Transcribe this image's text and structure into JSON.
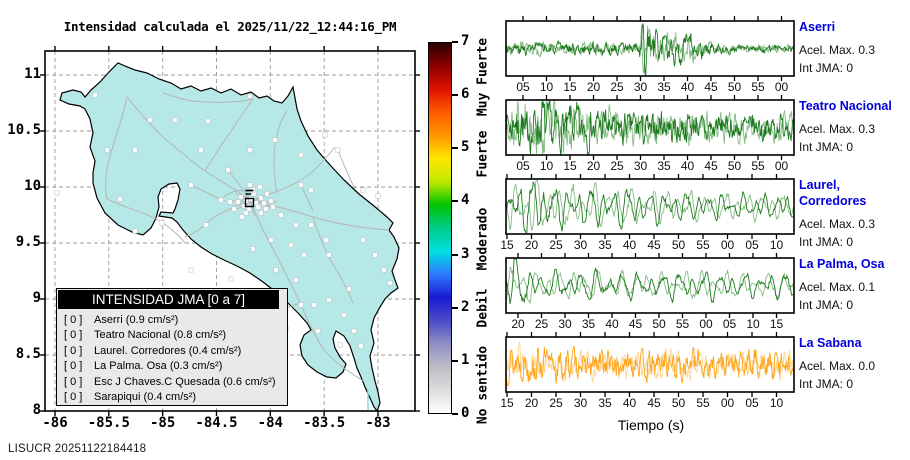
{
  "map": {
    "title": "Intensidad calculada el 2025/11/22_12:44:16_PM",
    "x_tick_labels": [
      "-86",
      "-85.5",
      "-85",
      "-84.5",
      "-84",
      "-83.5",
      "-83"
    ],
    "y_tick_labels": [
      "11",
      "10.5",
      "10",
      "9.5",
      "9",
      "8.5",
      "8"
    ],
    "land_color": "#b7e8e8",
    "legend": {
      "title": "INTENSIDAD JMA [0 a 7]",
      "items": [
        {
          "intensity": "0",
          "label": "Aserri (0.9 cm/s²)"
        },
        {
          "intensity": "0",
          "label": "Teatro Nacional (0.8 cm/s²)"
        },
        {
          "intensity": "0",
          "label": "Laurel. Corredores (0.4 cm/s²)"
        },
        {
          "intensity": "0",
          "label": "La Palma. Osa (0.3 cm/s²)"
        },
        {
          "intensity": "0",
          "label": "Esc J Chaves.C Quesada (0.6 cm/s²)"
        },
        {
          "intensity": "0",
          "label": "Sarapiqui (0.4 cm/s²)"
        }
      ]
    },
    "epicenter": {
      "symbol": "open-square"
    },
    "station_dots": [
      [
        196,
        146
      ],
      [
        201,
        150
      ],
      [
        206,
        148
      ],
      [
        211,
        152
      ],
      [
        216,
        147
      ],
      [
        209,
        143
      ],
      [
        199,
        155
      ],
      [
        204,
        158
      ],
      [
        213,
        156
      ],
      [
        219,
        152
      ],
      [
        193,
        151
      ],
      [
        208,
        139
      ],
      [
        201,
        162
      ],
      [
        216,
        162
      ],
      [
        221,
        158
      ],
      [
        226,
        150
      ],
      [
        189,
        158
      ],
      [
        197,
        166
      ],
      [
        222,
        143
      ],
      [
        228,
        156
      ],
      [
        185,
        151
      ],
      [
        205,
        134
      ],
      [
        215,
        136
      ],
      [
        12,
        142
      ],
      [
        50,
        44
      ],
      [
        105,
        69
      ],
      [
        130,
        69
      ],
      [
        163,
        70
      ],
      [
        205,
        45
      ],
      [
        293,
        99
      ],
      [
        318,
        139
      ],
      [
        333,
        145
      ],
      [
        256,
        134
      ],
      [
        266,
        139
      ],
      [
        183,
        119
      ],
      [
        146,
        134
      ],
      [
        117,
        172
      ],
      [
        90,
        180
      ],
      [
        75,
        148
      ],
      [
        208,
        198
      ],
      [
        226,
        189
      ],
      [
        246,
        194
      ],
      [
        259,
        204
      ],
      [
        284,
        204
      ],
      [
        304,
        238
      ],
      [
        284,
        249
      ],
      [
        256,
        254
      ],
      [
        241,
        278
      ],
      [
        273,
        280
      ],
      [
        295,
        294
      ],
      [
        309,
        280
      ],
      [
        186,
        228
      ],
      [
        166,
        248
      ],
      [
        146,
        219
      ],
      [
        62,
        99
      ],
      [
        90,
        99
      ],
      [
        231,
        219
      ],
      [
        251,
        229
      ],
      [
        269,
        254
      ],
      [
        299,
        264
      ],
      [
        316,
        295
      ],
      [
        205,
        99
      ],
      [
        230,
        89
      ],
      [
        256,
        104
      ],
      [
        280,
        84
      ],
      [
        156,
        99
      ],
      [
        176,
        149
      ],
      [
        161,
        174
      ],
      [
        236,
        164
      ],
      [
        251,
        174
      ],
      [
        266,
        174
      ],
      [
        281,
        189
      ],
      [
        318,
        189
      ],
      [
        330,
        204
      ],
      [
        339,
        219
      ],
      [
        345,
        232
      ]
    ],
    "footer": "LISUCR 20251122184418"
  },
  "colorbar": {
    "tick_labels": [
      "0",
      "1",
      "2",
      "3",
      "4",
      "5",
      "6",
      "7"
    ],
    "range": [
      0,
      7
    ],
    "categories": [
      {
        "label": "No sentido",
        "value": 0.55
      },
      {
        "label": "Debil",
        "value": 2.0
      },
      {
        "label": "Moderado",
        "value": 3.3
      },
      {
        "label": "Fuerte",
        "value": 4.9
      },
      {
        "label": "Muy Fuerte",
        "value": 6.35
      }
    ],
    "gradient_stops_bottom_to_top": [
      "#ffffff",
      "#dcdcdc",
      "#bcbcc6",
      "#8e8ec4",
      "#4a4ac8",
      "#1a1ad2",
      "#2d7bff",
      "#00e0e0",
      "#00cc88",
      "#00c400",
      "#bfe800",
      "#ffe600",
      "#ff9600",
      "#ff5a00",
      "#e01000",
      "#8c0000",
      "#2a0000"
    ]
  },
  "seismograms": {
    "xlabel": "Tiempo (s)",
    "panels": [
      {
        "station": "Aserri",
        "acel": "Acel. Max. 0.3",
        "jma": "Int JMA: 0",
        "tick_labels": [
          "05",
          "10",
          "15",
          "20",
          "25",
          "30",
          "35",
          "40",
          "45",
          "50",
          "55",
          "00"
        ],
        "tick_offset": 17,
        "tick_spacing": 23.5,
        "color": "#1d7a1d",
        "color_light": "#85bc85",
        "style": "noise",
        "seed": 3,
        "envelope": [
          [
            0,
            0.2
          ],
          [
            0.1,
            0.24
          ],
          [
            0.2,
            0.2
          ],
          [
            0.3,
            0.26
          ],
          [
            0.4,
            0.2
          ],
          [
            0.46,
            0.22
          ],
          [
            0.475,
            1.0
          ],
          [
            0.52,
            0.62
          ],
          [
            0.56,
            0.55
          ],
          [
            0.6,
            0.6
          ],
          [
            0.64,
            0.5
          ],
          [
            0.68,
            0.42
          ],
          [
            0.72,
            0.2
          ],
          [
            0.8,
            0.13
          ],
          [
            1,
            0.14
          ]
        ]
      },
      {
        "station": "Teatro Nacional",
        "acel": "Acel. Max. 0.3",
        "jma": "Int JMA: 0",
        "tick_labels": [
          "05",
          "10",
          "15",
          "20",
          "25",
          "30",
          "35",
          "40",
          "45",
          "50",
          "55",
          "00"
        ],
        "tick_offset": 17,
        "tick_spacing": 23.5,
        "color": "#1d7a1d",
        "color_light": "#85bc85",
        "style": "noise",
        "seed": 7,
        "envelope": [
          [
            0,
            0.55
          ],
          [
            0.04,
            0.9
          ],
          [
            0.12,
            0.95
          ],
          [
            0.2,
            0.8
          ],
          [
            0.3,
            0.7
          ],
          [
            0.45,
            0.6
          ],
          [
            0.6,
            0.55
          ],
          [
            0.75,
            0.5
          ],
          [
            0.9,
            0.48
          ],
          [
            1,
            0.45
          ]
        ]
      },
      {
        "station": "Laurel, Corredores",
        "acel": "Acel. Max. 0.3",
        "jma": "Int JMA: 0",
        "tick_labels": [
          "15",
          "20",
          "25",
          "30",
          "35",
          "40",
          "45",
          "50",
          "55",
          "00",
          "05",
          "10"
        ],
        "tick_offset": 1,
        "tick_spacing": 24.5,
        "color": "#1d7a1d",
        "color_light": "#85bc85",
        "style": "smooth",
        "seed": 5,
        "f": [
          0.55,
          0.33,
          0.85
        ],
        "envelope": [
          [
            0,
            0.55
          ],
          [
            0.05,
            0.75
          ],
          [
            0.09,
            1.0
          ],
          [
            0.14,
            0.7
          ],
          [
            0.25,
            0.6
          ],
          [
            0.4,
            0.62
          ],
          [
            0.55,
            0.5
          ],
          [
            0.7,
            0.42
          ],
          [
            0.85,
            0.38
          ],
          [
            1,
            0.42
          ]
        ]
      },
      {
        "station": "La Palma, Osa",
        "acel": "Acel. Max. 0.1",
        "jma": "Int JMA: 0",
        "tick_labels": [
          "20",
          "25",
          "30",
          "35",
          "40",
          "45",
          "50",
          "55",
          "00",
          "05",
          "10",
          "15"
        ],
        "tick_offset": 12,
        "tick_spacing": 23.5,
        "color": "#1d7a1d",
        "color_light": "#85bc85",
        "style": "smooth",
        "seed": 9,
        "f": [
          0.48,
          0.3,
          0.78
        ],
        "envelope": [
          [
            0,
            0.5
          ],
          [
            0.03,
            1.0
          ],
          [
            0.07,
            0.55
          ],
          [
            0.15,
            0.42
          ],
          [
            0.3,
            0.45
          ],
          [
            0.5,
            0.4
          ],
          [
            0.7,
            0.45
          ],
          [
            0.85,
            0.38
          ],
          [
            1,
            0.42
          ]
        ]
      },
      {
        "station": "La Sabana",
        "acel": "Acel. Max. 0.0",
        "jma": "Int JMA: 0",
        "tick_labels": [
          "15",
          "20",
          "25",
          "30",
          "35",
          "40",
          "45",
          "50",
          "55",
          "00",
          "05",
          "10"
        ],
        "tick_offset": 1,
        "tick_spacing": 24.5,
        "color": "#ffa41e",
        "color_light": "#ffd68f",
        "style": "noise",
        "seed": 13,
        "envelope": [
          [
            0,
            0.62
          ],
          [
            0.15,
            0.55
          ],
          [
            0.3,
            0.5
          ],
          [
            0.5,
            0.55
          ],
          [
            0.7,
            0.52
          ],
          [
            0.85,
            0.55
          ],
          [
            1,
            0.5
          ]
        ]
      }
    ]
  },
  "chart_data": {
    "type": "multi",
    "charts": [
      {
        "type": "map",
        "title": "Intensidad calculada el 2025/11/22_12:44:16_PM",
        "region": "Costa Rica",
        "x_ticks": [
          -86,
          -85.5,
          -85,
          -84.5,
          -84,
          -83.5,
          -83
        ],
        "y_ticks": [
          8,
          8.5,
          9,
          9.5,
          10,
          10.5,
          11
        ],
        "grid": true,
        "stations_jma": [
          {
            "name": "Aserri",
            "jma": 0,
            "acel_cm_s2": 0.9
          },
          {
            "name": "Teatro Nacional",
            "jma": 0,
            "acel_cm_s2": 0.8
          },
          {
            "name": "Laurel. Corredores",
            "jma": 0,
            "acel_cm_s2": 0.4
          },
          {
            "name": "La Palma. Osa",
            "jma": 0,
            "acel_cm_s2": 0.3
          },
          {
            "name": "Esc J Chaves.C Quesada",
            "jma": 0,
            "acel_cm_s2": 0.6
          },
          {
            "name": "Sarapiqui",
            "jma": 0,
            "acel_cm_s2": 0.4
          }
        ]
      },
      {
        "type": "colorbar",
        "title": "INTENSIDAD JMA [0 a 7]",
        "range": [
          0,
          7
        ],
        "tick_step": 1,
        "labels": [
          "No sentido",
          "Debil",
          "Moderado",
          "Fuerte",
          "Muy Fuerte"
        ]
      },
      {
        "type": "line",
        "title": "Aserri",
        "xlabel": "Tiempo (s)",
        "x_tick_labels": [
          "05",
          "10",
          "15",
          "20",
          "25",
          "30",
          "35",
          "40",
          "45",
          "50",
          "55",
          "00"
        ],
        "annotations": [
          "Acel. Max. 0.3",
          "Int JMA: 0"
        ],
        "color": "#1d7a1d",
        "description": "high-frequency seismic noise with strong burst near t=30s"
      },
      {
        "type": "line",
        "title": "Teatro Nacional",
        "xlabel": "Tiempo (s)",
        "x_tick_labels": [
          "05",
          "10",
          "15",
          "20",
          "25",
          "30",
          "35",
          "40",
          "45",
          "50",
          "55",
          "00"
        ],
        "annotations": [
          "Acel. Max. 0.3",
          "Int JMA: 0"
        ],
        "color": "#1d7a1d",
        "description": "dense oscillation, larger at start, slowly decaying"
      },
      {
        "type": "line",
        "title": "Laurel, Corredores",
        "xlabel": "Tiempo (s)",
        "x_tick_labels": [
          "15",
          "20",
          "25",
          "30",
          "35",
          "40",
          "45",
          "50",
          "55",
          "00",
          "05",
          "10"
        ],
        "annotations": [
          "Acel. Max. 0.3",
          "Int JMA: 0"
        ],
        "color": "#1d7a1d",
        "description": "smooth low-frequency oscillation, large dip near t=19s"
      },
      {
        "type": "line",
        "title": "La Palma, Osa",
        "xlabel": "Tiempo (s)",
        "x_tick_labels": [
          "20",
          "25",
          "30",
          "35",
          "40",
          "45",
          "50",
          "55",
          "00",
          "05",
          "10",
          "15"
        ],
        "annotations": [
          "Acel. Max. 0.1",
          "Int JMA: 0"
        ],
        "color": "#1d7a1d",
        "description": "smooth low-frequency oscillation, spike near start"
      },
      {
        "type": "line",
        "title": "La Sabana",
        "xlabel": "Tiempo (s)",
        "x_tick_labels": [
          "15",
          "20",
          "25",
          "30",
          "35",
          "40",
          "45",
          "50",
          "55",
          "00",
          "05",
          "10"
        ],
        "annotations": [
          "Acel. Max. 0.0",
          "Int JMA: 0"
        ],
        "color": "#ffa41e",
        "description": "constant dense orange noise"
      }
    ]
  }
}
